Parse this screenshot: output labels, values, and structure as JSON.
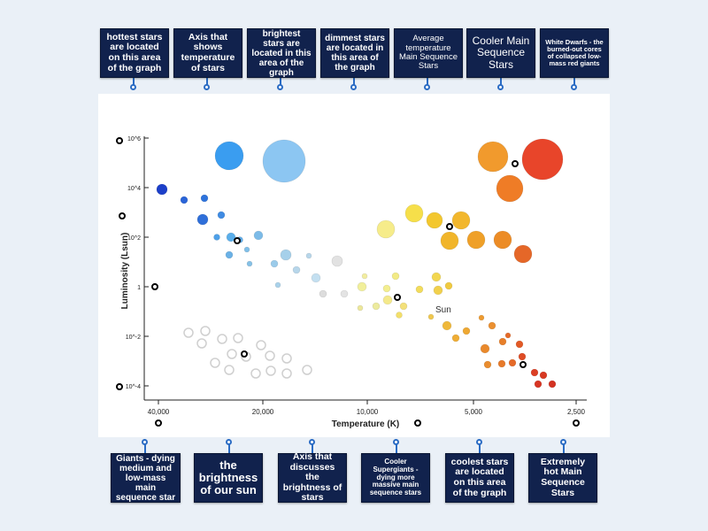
{
  "top_labels": [
    {
      "text": "hottest stars are located on this area of the graph"
    },
    {
      "text": "Axis that shows temperature of stars"
    },
    {
      "text": "brightest stars are located in this area of the graph"
    },
    {
      "text": "dimmest stars are located in this area of the graph"
    },
    {
      "text": "Average temperature Main Sequence Stars"
    },
    {
      "text": "Cooler Main Sequence Stars"
    },
    {
      "text": "White Dwarfs - the burned-out cores of collapsed low-mass red giants"
    }
  ],
  "bottom_labels": [
    {
      "text": "Giants - dying medium and low-mass main sequence star"
    },
    {
      "text": "the brightness of our sun"
    },
    {
      "text": "Axis that discusses the brightness of stars"
    },
    {
      "text": "Cooler Supergiants - dying more massive main sequence stars"
    },
    {
      "text": "coolest stars are located on this area of the graph"
    },
    {
      "text": "Extremely hot Main Sequence Stars"
    }
  ],
  "diagram": {
    "x_axis_label": "Temperature (K)",
    "y_axis_label": "Luminosity (Lsun)",
    "x_ticks": [
      "40,000",
      "20,000",
      "10,000",
      "5,000",
      "2,500"
    ],
    "y_ticks": [
      "10^6",
      "10^4",
      "10^2",
      "1",
      "10^-2",
      "10^-4"
    ],
    "sun_label": "Sun"
  },
  "colors": {
    "card_bg": "#11224d",
    "connector": "#2b6cc4",
    "background": "#eaf0f7"
  }
}
